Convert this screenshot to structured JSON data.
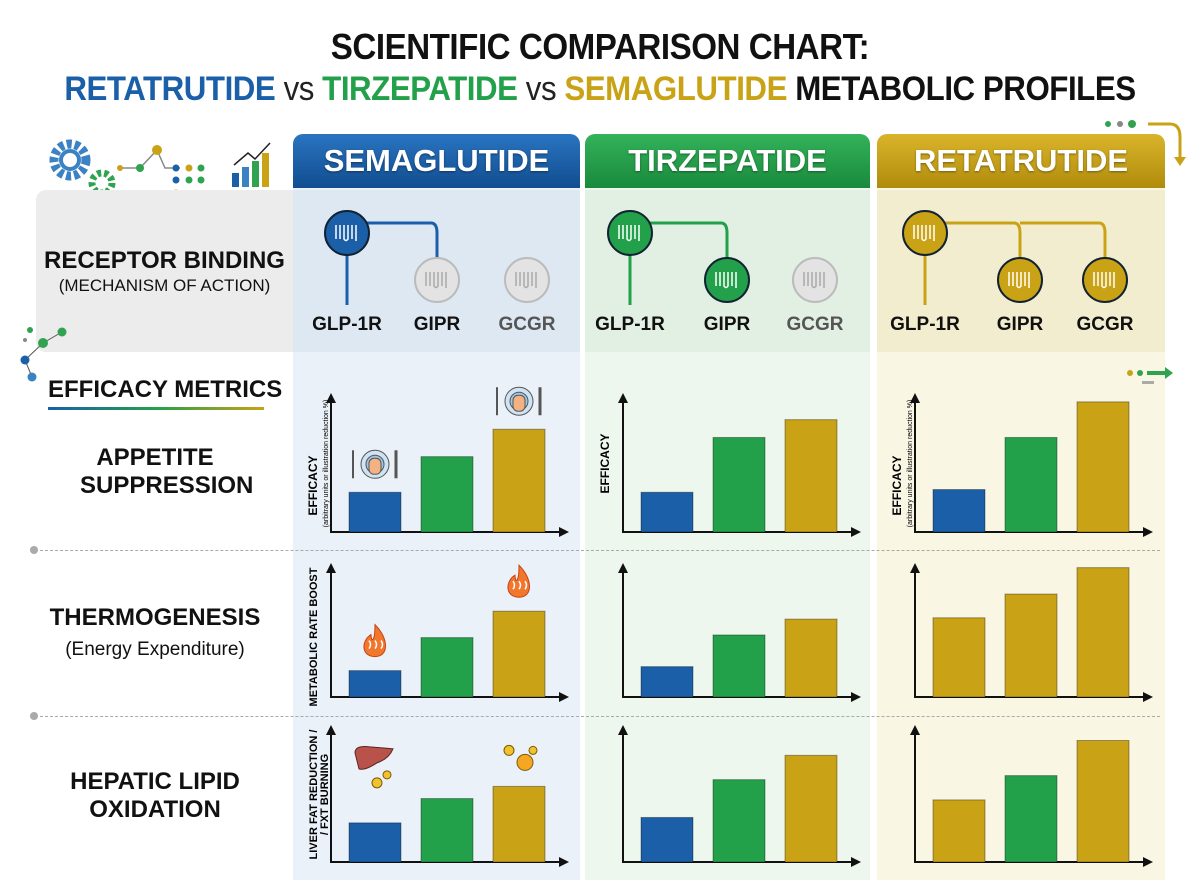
{
  "title": {
    "line1": "SCIENTIFIC COMPARISON CHART:",
    "drug1": "RETATRUTIDE",
    "vs": "vs",
    "drug2": "TIRZEPATIDE",
    "drug3": "SEMAGLUTIDE",
    "suffix": "METABOLIC PROFILES"
  },
  "colors": {
    "semaglutide": "#1a5fa8",
    "tirzepatide": "#23a04a",
    "retatrutide": "#c9a215"
  },
  "columns": [
    {
      "name": "SEMAGLUTIDE",
      "receptors": [
        {
          "label": "GLP-1R",
          "active": true
        },
        {
          "label": "GIPR",
          "active": false
        },
        {
          "label": "GCGR",
          "active": false
        }
      ]
    },
    {
      "name": "TIRZEPATIDE",
      "receptors": [
        {
          "label": "GLP-1R",
          "active": true
        },
        {
          "label": "GIPR",
          "active": true
        },
        {
          "label": "GCGR",
          "active": false
        }
      ]
    },
    {
      "name": "RETATRUTIDE",
      "receptors": [
        {
          "label": "GLP-1R",
          "active": true
        },
        {
          "label": "GIPR",
          "active": true
        },
        {
          "label": "GCGR",
          "active": true
        }
      ]
    }
  ],
  "rows": {
    "receptor": {
      "title": "RECEPTOR BINDING",
      "subtitle": "(MECHANISM OF ACTION)"
    },
    "section": "EFFICACY METRICS",
    "appetite": {
      "title": "APPETITE SUPPRESSION"
    },
    "thermo": {
      "title": "THERMOGENESIS",
      "subtitle": "(Energy Expenditure)"
    },
    "hepatic": {
      "title": "HEPATIC LIPID OXIDATION"
    }
  },
  "chart_data": [
    {
      "type": "bar",
      "panel": "SEMAGLUTIDE",
      "metric": "APPETITE SUPPRESSION",
      "ylabel": "EFFICACY",
      "ylabel_sub": "(arbitrary units or illustration reduction %)",
      "values": [
        29,
        55,
        75
      ],
      "bar_colors": [
        "#1a5fa8",
        "#23a04a",
        "#c9a215"
      ],
      "icons": [
        "plate-hand-icon",
        "plate-hand-icon"
      ]
    },
    {
      "type": "bar",
      "panel": "TIRZEPATIDE",
      "metric": "APPETITE SUPPRESSION",
      "ylabel": "EFFICACY",
      "values": [
        29,
        69,
        82
      ],
      "bar_colors": [
        "#1a5fa8",
        "#23a04a",
        "#c9a215"
      ]
    },
    {
      "type": "bar",
      "panel": "RETATRUTIDE",
      "metric": "APPETITE SUPPRESSION",
      "ylabel": "EFFICACY",
      "ylabel_sub": "(arbitrary units or illustration reduction %)",
      "values": [
        31,
        69,
        95
      ],
      "bar_colors": [
        "#1a5fa8",
        "#23a04a",
        "#c9a215"
      ]
    },
    {
      "type": "bar",
      "panel": "SEMAGLUTIDE",
      "metric": "THERMOGENESIS",
      "ylabel": "METABOLIC RATE BOOST",
      "values": [
        20,
        45,
        65
      ],
      "bar_colors": [
        "#1a5fa8",
        "#23a04a",
        "#c9a215"
      ],
      "icons": [
        "flame-icon",
        "flame-icon"
      ]
    },
    {
      "type": "bar",
      "panel": "TIRZEPATIDE",
      "metric": "THERMOGENESIS",
      "values": [
        23,
        47,
        59
      ],
      "bar_colors": [
        "#1a5fa8",
        "#23a04a",
        "#c9a215"
      ]
    },
    {
      "type": "bar",
      "panel": "RETATRUTIDE",
      "metric": "THERMOGENESIS",
      "values": [
        60,
        78,
        98
      ],
      "bar_colors": [
        "#c9a215",
        "#c9a215",
        "#c9a215"
      ]
    },
    {
      "type": "bar",
      "panel": "SEMAGLUTIDE",
      "metric": "HEPATIC LIPID OXIDATION",
      "ylabel": "LIVER FAT REDUCTION /",
      "ylabel_sub": "/ FXT BURNING",
      "values": [
        29,
        47,
        56
      ],
      "bar_colors": [
        "#1a5fa8",
        "#23a04a",
        "#c9a215"
      ],
      "icons": [
        "liver-icon",
        "oil-drops-icon"
      ]
    },
    {
      "type": "bar",
      "panel": "TIRZEPATIDE",
      "metric": "HEPATIC LIPID OXIDATION",
      "values": [
        33,
        61,
        79
      ],
      "bar_colors": [
        "#1a5fa8",
        "#23a04a",
        "#c9a215"
      ]
    },
    {
      "type": "bar",
      "panel": "RETATRUTIDE",
      "metric": "HEPATIC LIPID OXIDATION",
      "values": [
        46,
        64,
        90
      ],
      "bar_colors": [
        "#c9a215",
        "#23a04a",
        "#c9a215"
      ]
    }
  ]
}
